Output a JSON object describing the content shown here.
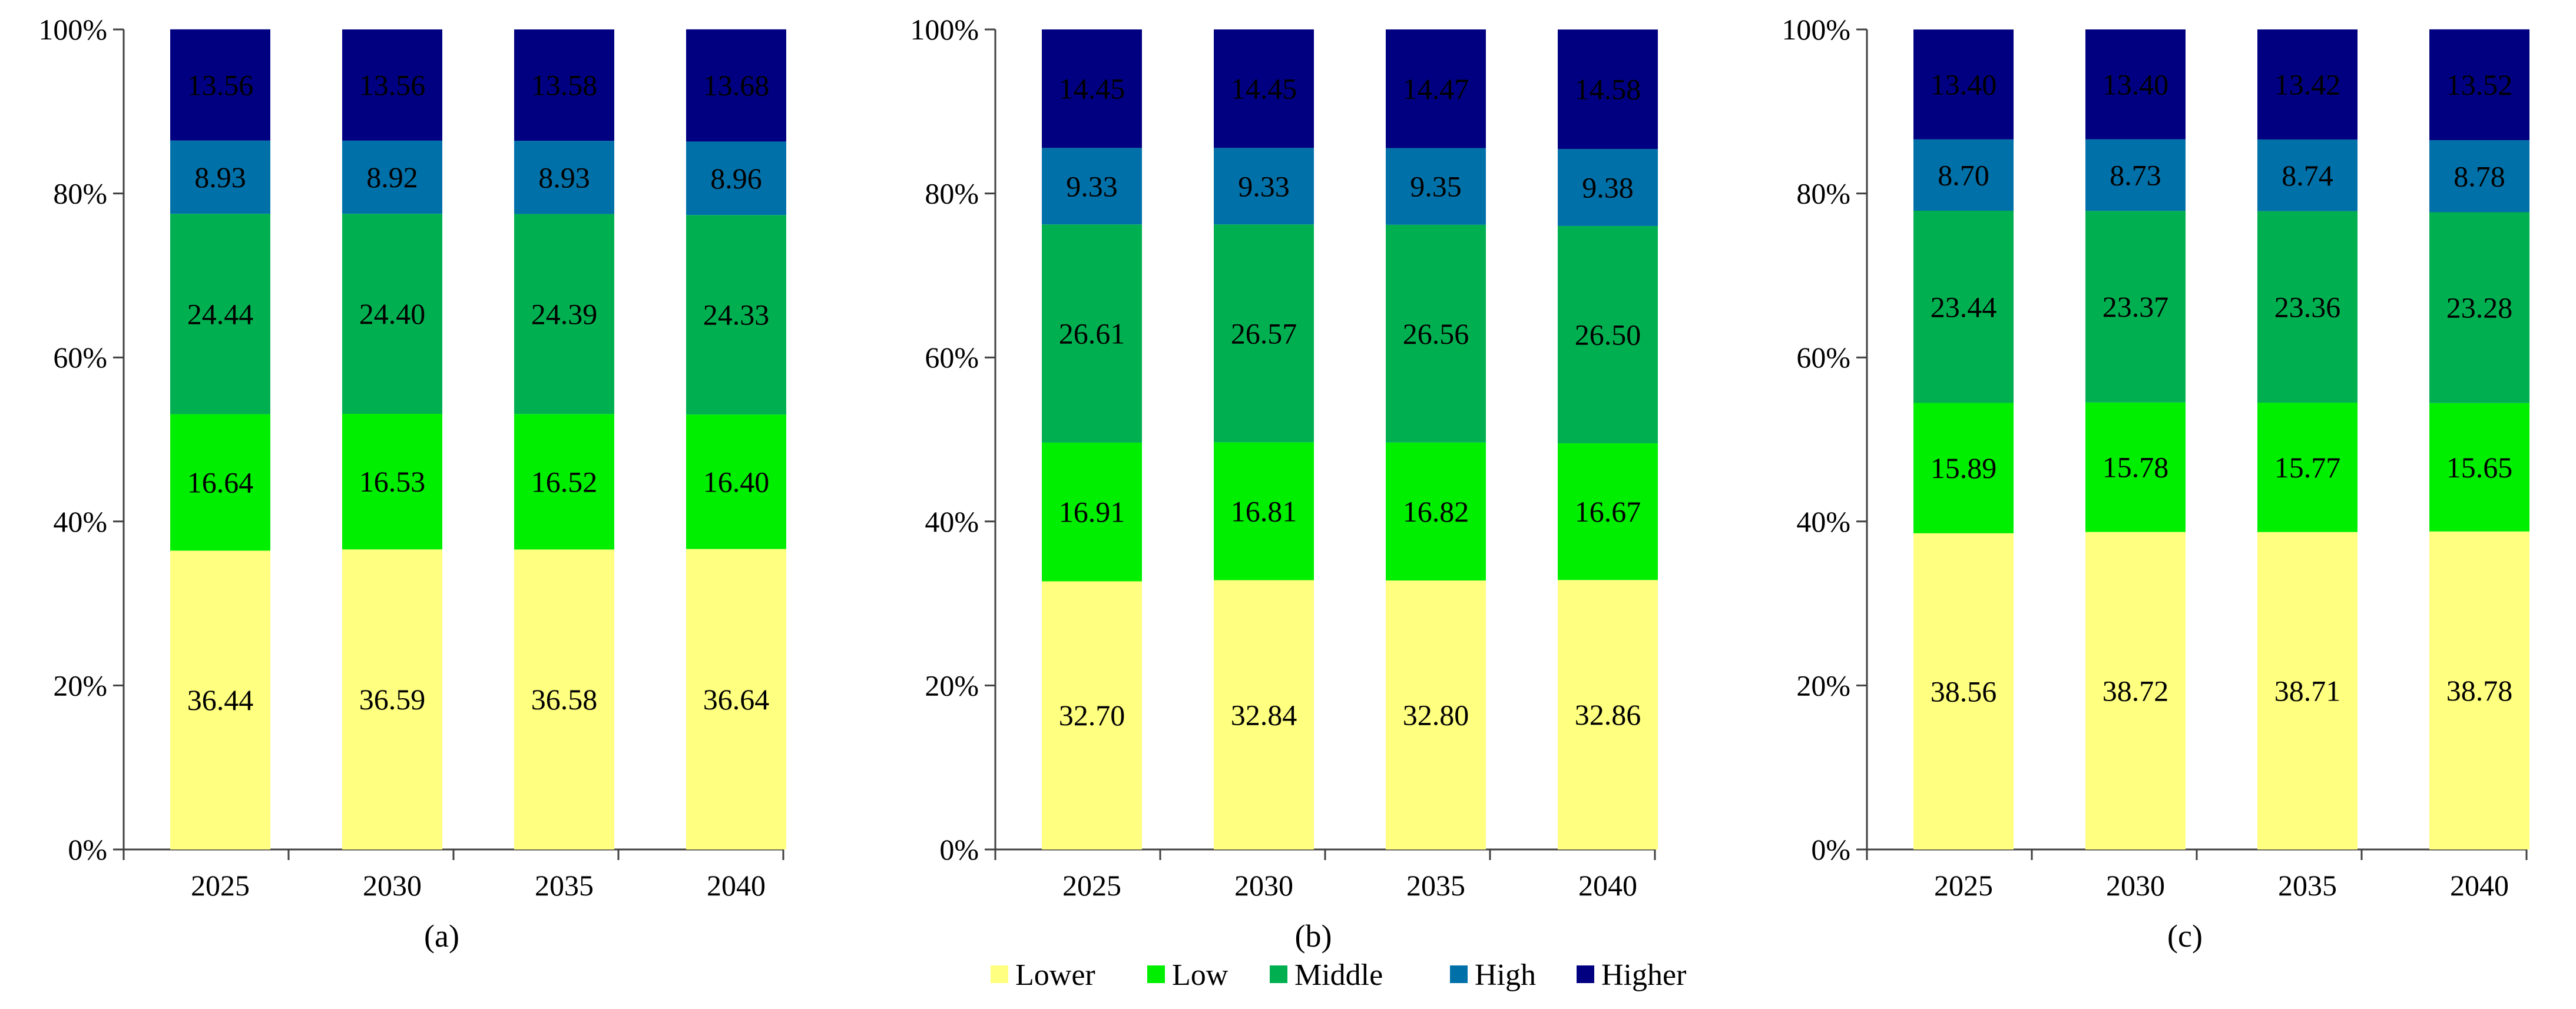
{
  "chart_data": [
    {
      "type": "bar",
      "stacked": true,
      "caption": "(a)",
      "categories": [
        "2025",
        "2030",
        "2035",
        "2040"
      ],
      "ylim": [
        0,
        100
      ],
      "yticks": [
        "0%",
        "20%",
        "40%",
        "60%",
        "80%",
        "100%"
      ],
      "series": [
        {
          "name": "Lower",
          "values": [
            36.44,
            36.59,
            36.58,
            36.64
          ],
          "labels": [
            "36.44",
            "36.59",
            "36.58",
            "36.64"
          ]
        },
        {
          "name": "Low",
          "values": [
            16.64,
            16.53,
            16.52,
            16.4
          ],
          "labels": [
            "16.64",
            "16.53",
            "16.52",
            "16.40"
          ]
        },
        {
          "name": "Middle",
          "values": [
            24.44,
            24.4,
            24.39,
            24.33
          ],
          "labels": [
            "24.44",
            "24.40",
            "24.39",
            "24.33"
          ]
        },
        {
          "name": "High",
          "values": [
            8.93,
            8.92,
            8.93,
            8.96
          ],
          "labels": [
            "8.93",
            "8.92",
            "8.93",
            "8.96"
          ]
        },
        {
          "name": "Higher",
          "values": [
            13.56,
            13.56,
            13.58,
            13.68
          ],
          "labels": [
            "13.56",
            "13.56",
            "13.58",
            "13.68"
          ]
        }
      ]
    },
    {
      "type": "bar",
      "stacked": true,
      "caption": "(b)",
      "categories": [
        "2025",
        "2030",
        "2035",
        "2040"
      ],
      "ylim": [
        0,
        100
      ],
      "yticks": [
        "0%",
        "20%",
        "40%",
        "60%",
        "80%",
        "100%"
      ],
      "series": [
        {
          "name": "Lower",
          "values": [
            32.7,
            32.84,
            32.8,
            32.86
          ],
          "labels": [
            "32.70",
            "32.84",
            "32.80",
            "32.86"
          ]
        },
        {
          "name": "Low",
          "values": [
            16.91,
            16.81,
            16.82,
            16.67
          ],
          "labels": [
            "16.91",
            "16.81",
            "16.82",
            "16.67"
          ]
        },
        {
          "name": "Middle",
          "values": [
            26.61,
            26.57,
            26.56,
            26.5
          ],
          "labels": [
            "26.61",
            "26.57",
            "26.56",
            "26.50"
          ]
        },
        {
          "name": "High",
          "values": [
            9.33,
            9.33,
            9.35,
            9.38
          ],
          "labels": [
            "9.33",
            "9.33",
            "9.35",
            "9.38"
          ]
        },
        {
          "name": "Higher",
          "values": [
            14.45,
            14.45,
            14.47,
            14.58
          ],
          "labels": [
            "14.45",
            "14.45",
            "14.47",
            "14.58"
          ]
        }
      ]
    },
    {
      "type": "bar",
      "stacked": true,
      "caption": "(c)",
      "categories": [
        "2025",
        "2030",
        "2035",
        "2040"
      ],
      "ylim": [
        0,
        100
      ],
      "yticks": [
        "0%",
        "20%",
        "40%",
        "60%",
        "80%",
        "100%"
      ],
      "series": [
        {
          "name": "Lower",
          "values": [
            38.56,
            38.72,
            38.71,
            38.78
          ],
          "labels": [
            "38.56",
            "38.72",
            "38.71",
            "38.78"
          ]
        },
        {
          "name": "Low",
          "values": [
            15.89,
            15.78,
            15.77,
            15.65
          ],
          "labels": [
            "15.89",
            "15.78",
            "15.77",
            "15.65"
          ]
        },
        {
          "name": "Middle",
          "values": [
            23.44,
            23.37,
            23.36,
            23.28
          ],
          "labels": [
            "23.44",
            "23.37",
            "23.36",
            "23.28"
          ]
        },
        {
          "name": "High",
          "values": [
            8.7,
            8.73,
            8.74,
            8.78
          ],
          "labels": [
            "8.70",
            "8.73",
            "8.74",
            "8.78"
          ]
        },
        {
          "name": "Higher",
          "values": [
            13.4,
            13.4,
            13.42,
            13.52
          ],
          "labels": [
            "13.40",
            "13.40",
            "13.42",
            "13.52"
          ]
        }
      ]
    }
  ],
  "legend": {
    "position": "bottom-center",
    "items": [
      {
        "name": "Lower",
        "color": "#FFFF80"
      },
      {
        "name": "Low",
        "color": "#00EE00"
      },
      {
        "name": "Middle",
        "color": "#00B050"
      },
      {
        "name": "High",
        "color": "#0070A8"
      },
      {
        "name": "Higher",
        "color": "#000080"
      }
    ]
  }
}
